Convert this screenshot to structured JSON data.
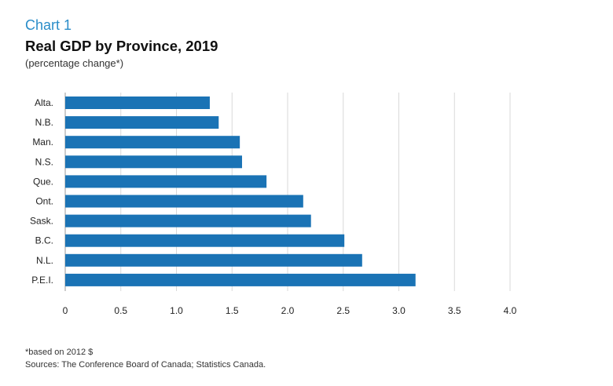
{
  "header": {
    "chart_label": "Chart 1",
    "title": "Real GDP by Province, 2019",
    "subtitle": "(percentage change*)"
  },
  "footer": {
    "footnote": "*based on 2012 $",
    "sources": "Sources: The Conference Board of Canada; Statistics Canada."
  },
  "chart_data": {
    "type": "bar",
    "orientation": "horizontal",
    "title": "Real GDP by Province, 2019",
    "subtitle": "(percentage change*)",
    "xlabel": "",
    "ylabel": "",
    "categories": [
      "Alta.",
      "N.B.",
      "Man.",
      "N.S.",
      "Que.",
      "Ont.",
      "Sask.",
      "B.C.",
      "N.L.",
      "P.E.I."
    ],
    "values": [
      1.3,
      1.38,
      1.57,
      1.59,
      1.81,
      2.14,
      2.21,
      2.51,
      2.67,
      3.15
    ],
    "xlim": [
      0,
      4.0
    ],
    "xticks": [
      0,
      0.5,
      1.0,
      1.5,
      2.0,
      2.5,
      3.0,
      3.5,
      4.0
    ],
    "xtick_labels": [
      "0",
      "0.5",
      "1.0",
      "1.5",
      "2.0",
      "2.5",
      "3.0",
      "3.5",
      "4.0"
    ],
    "grid": "vertical",
    "bar_color": "#1a73b5",
    "grid_color": "#d9d9d9"
  }
}
